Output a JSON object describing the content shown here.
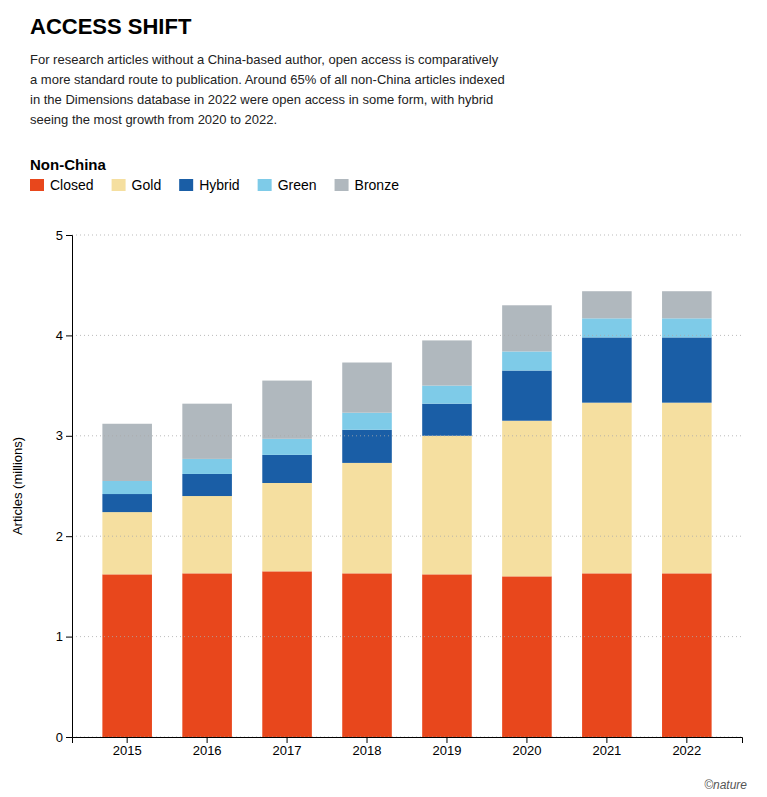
{
  "chart_data": {
    "type": "bar",
    "stacked": true,
    "title": "ACCESS SHIFT",
    "subtitle": "For research articles without a China-based author, open access is comparatively\na more standard route to publication. Around 65% of all non-China articles indexed\nin the Dimensions database in 2022 were open access in some form, with hybrid\nseeing the most growth from 2020 to 2022.",
    "annotations": [
      "Non-China",
      "©nature"
    ],
    "y_label": "Articles (millions)",
    "categories": [
      "2015",
      "2016",
      "2017",
      "2018",
      "2019",
      "2020",
      "2021",
      "2022"
    ],
    "series": [
      {
        "name": "Closed",
        "color": "#e8471c",
        "values": [
          1.62,
          1.63,
          1.65,
          1.63,
          1.62,
          1.6,
          1.63,
          1.63
        ]
      },
      {
        "name": "Gold",
        "color": "#f5dfa0",
        "values": [
          0.62,
          0.77,
          0.88,
          1.1,
          1.38,
          1.55,
          1.7,
          1.7
        ]
      },
      {
        "name": "Hybrid",
        "color": "#1a5ea6",
        "values": [
          0.18,
          0.22,
          0.28,
          0.33,
          0.32,
          0.5,
          0.65,
          0.65
        ]
      },
      {
        "name": "Green",
        "color": "#7ecbe8",
        "values": [
          0.13,
          0.15,
          0.16,
          0.17,
          0.18,
          0.19,
          0.19,
          0.19
        ]
      },
      {
        "name": "Bronze",
        "color": "#b0b8be",
        "values": [
          0.57,
          0.55,
          0.58,
          0.5,
          0.45,
          0.46,
          0.27,
          0.27
        ]
      }
    ],
    "ylim": [
      0,
      5
    ],
    "yticks": [
      0,
      1,
      2,
      3,
      4,
      5
    ],
    "grid": true,
    "legend": "top-left"
  }
}
